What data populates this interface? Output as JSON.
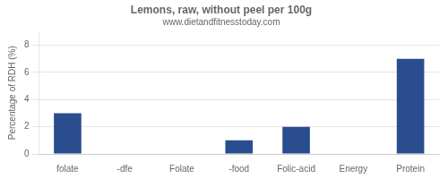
{
  "chart_data": {
    "type": "bar",
    "title": "Lemons, raw, without peel per 100g",
    "subtitle": "www.dietandfitnesstoday.com",
    "categories": [
      "folate",
      "-dfe",
      "Folate",
      "-food",
      "Folic-acid",
      "Energy",
      "Protein"
    ],
    "values": [
      3,
      0,
      0,
      1,
      2,
      0,
      7
    ],
    "color": "#2a4d8f",
    "ylabel": "Percentage of RDH (%)",
    "ylim": [
      0,
      9
    ],
    "yticks": [
      0,
      2,
      4,
      6,
      8
    ],
    "grid": true
  }
}
